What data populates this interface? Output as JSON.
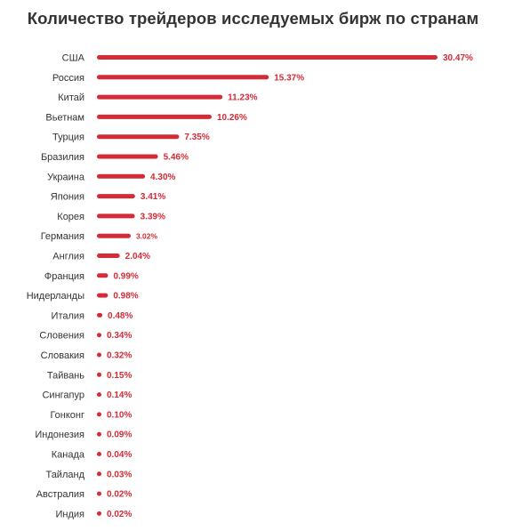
{
  "chart_data": {
    "type": "bar",
    "orientation": "horizontal",
    "title": "Количество трейдеров исследуемых бирж по странам",
    "xlabel": "",
    "ylabel": "",
    "grid": false,
    "legend": "none",
    "bar_color": "#d52b36",
    "unit": "%",
    "xlim": [
      0,
      30.47
    ],
    "categories": [
      "США",
      "Россия",
      "Китай",
      "Вьетнам",
      "Турция",
      "Бразилия",
      "Украина",
      "Япония",
      "Корея",
      "Германия",
      "Англия",
      "Франция",
      "Нидерланды",
      "Италия",
      "Словения",
      "Словакия",
      "Тайвань",
      "Сингапур",
      "Гонконг",
      "Индонезия",
      "Канада",
      "Тайланд",
      "Австралия",
      "Индия"
    ],
    "values": [
      30.47,
      15.37,
      11.23,
      10.26,
      7.35,
      5.46,
      4.3,
      3.41,
      3.39,
      3.02,
      2.04,
      0.99,
      0.98,
      0.48,
      0.34,
      0.32,
      0.15,
      0.14,
      0.1,
      0.09,
      0.04,
      0.03,
      0.02,
      0.02
    ],
    "value_labels": [
      "30.47%",
      "15.37%",
      "11.23%",
      "10.26%",
      "7.35%",
      "5.46%",
      "4.30%",
      "3.41%",
      "3.39%",
      "3.02%",
      "2.04%",
      "0.99%",
      "0.98%",
      "0.48%",
      "0.34%",
      "0.32%",
      "0.15%",
      "0.14%",
      "0.10%",
      "0.09%",
      "0.04%",
      "0.03%",
      "0.02%",
      "0.02%"
    ]
  }
}
